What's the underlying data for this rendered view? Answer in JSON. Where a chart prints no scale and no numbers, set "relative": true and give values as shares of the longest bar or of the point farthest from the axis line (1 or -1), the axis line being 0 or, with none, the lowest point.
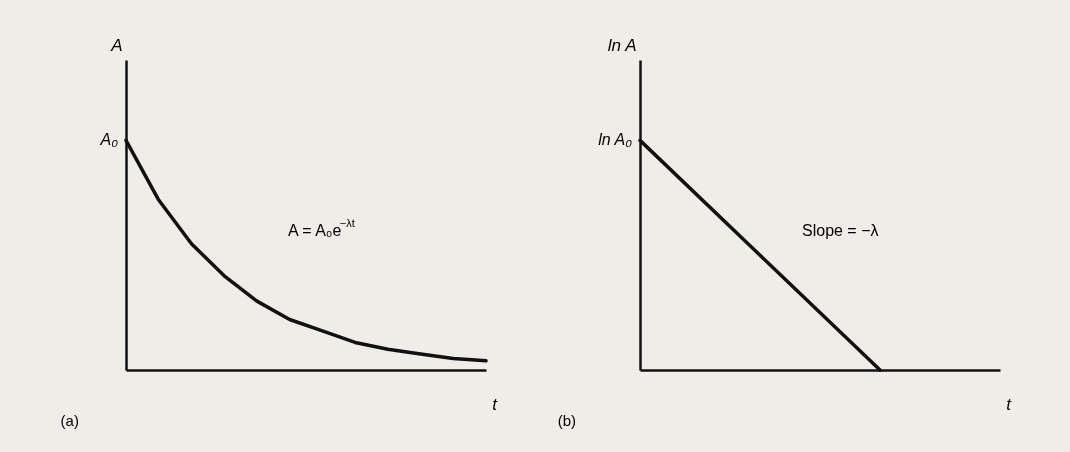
{
  "chart_data": [
    {
      "type": "line",
      "title": "(a)",
      "xlabel": "t",
      "ylabel": "A",
      "relative": true,
      "grid": false,
      "marker": "none",
      "line_style": "solid",
      "categories": [
        null,
        null,
        null,
        null,
        null,
        null,
        null,
        null,
        null,
        null,
        null,
        null
      ],
      "series": [
        {
          "color": "#111111",
          "values": [
            1,
            0.74,
            0.55,
            0.41,
            0.3,
            0.22,
            0.17,
            0.12,
            0.09,
            0.07,
            0.05,
            0.04
          ]
        }
      ],
      "annotations": [
        "A₀",
        "A = A₀e$^{−λt}$"
      ]
    },
    {
      "type": "line",
      "title": "(b)",
      "xlabel": "t",
      "ylabel": "ln A",
      "relative": true,
      "grid": false,
      "marker": "none",
      "line_style": "solid",
      "categories": [
        null,
        null,
        null,
        null
      ],
      "series": [
        {
          "color": "#111111",
          "values": [
            1,
            0.5,
            0,
            null
          ]
        }
      ],
      "annotations": [
        "ln A₀",
        "Slope = −λ"
      ]
    }
  ]
}
